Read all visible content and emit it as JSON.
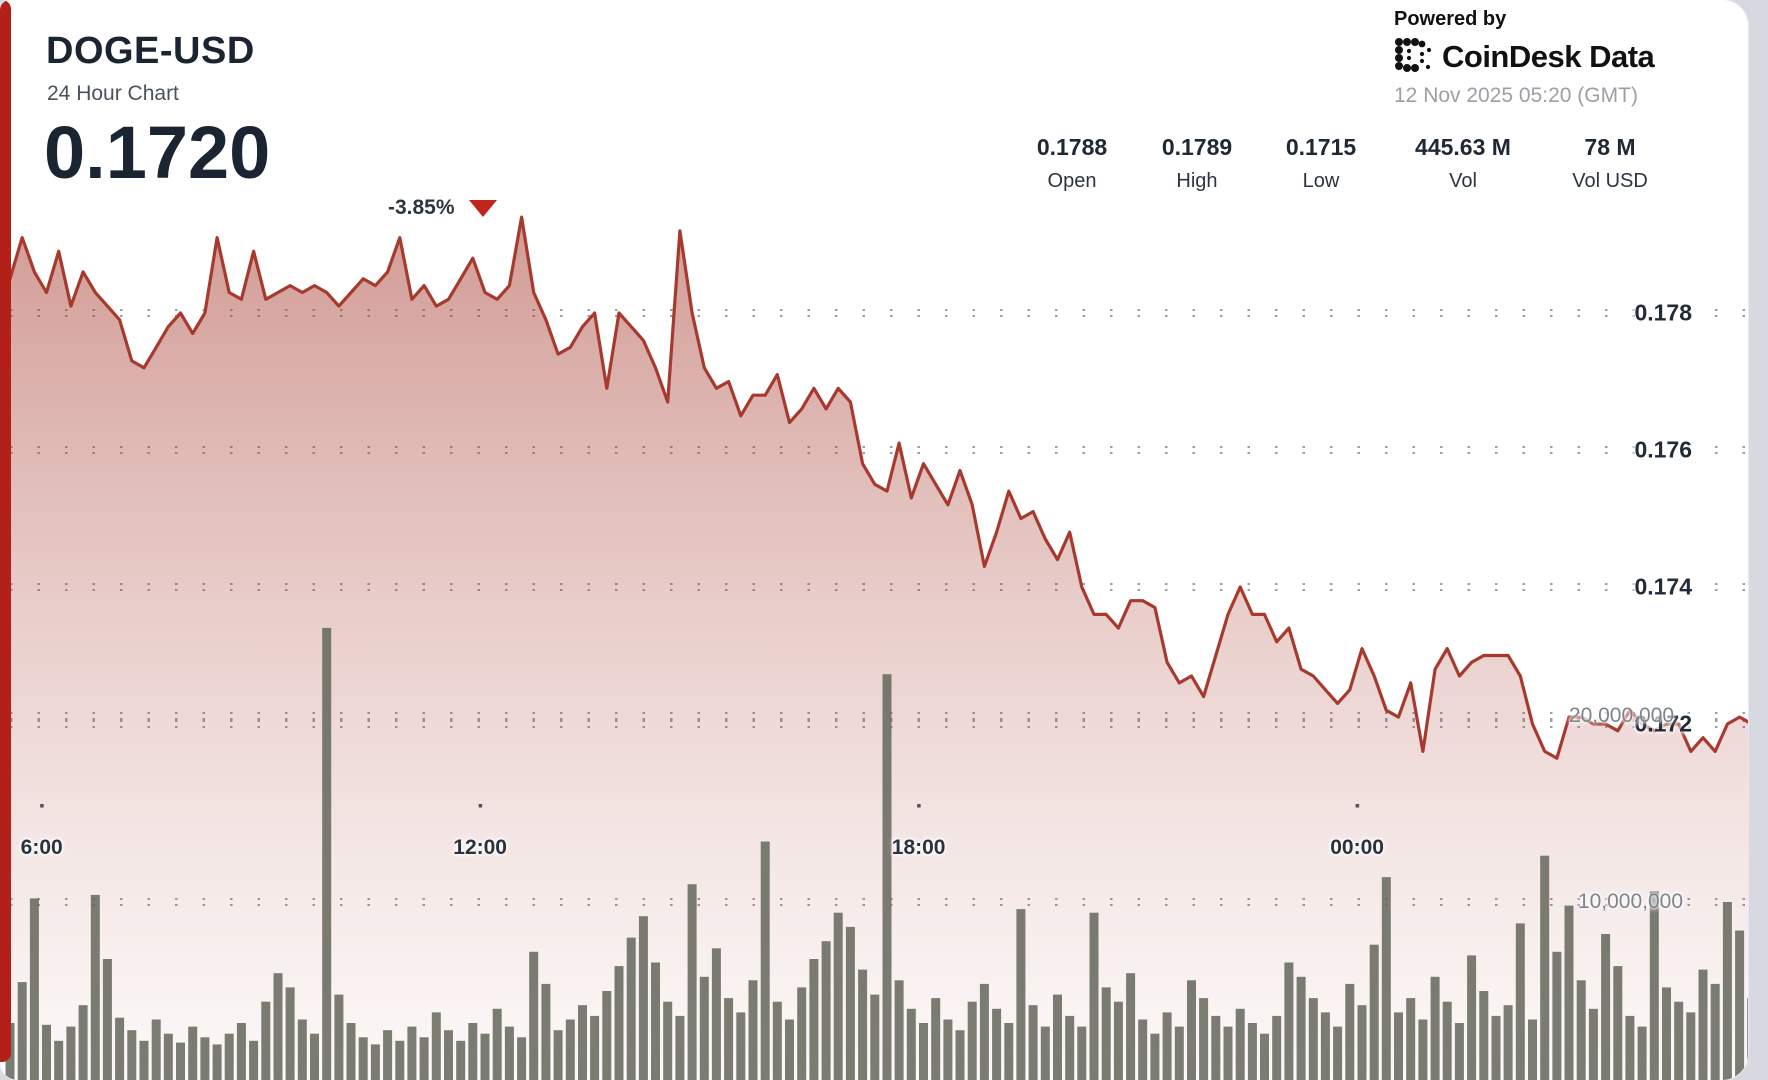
{
  "card": {
    "title": "DOGE-USD",
    "subtitle": "24 Hour Chart",
    "last_price": "0.1720",
    "change_percent": "-3.85%",
    "change_direction": "down"
  },
  "stats": [
    {
      "value": "0.1788",
      "label": "Open"
    },
    {
      "value": "0.1789",
      "label": "High"
    },
    {
      "value": "0.1715",
      "label": "Low"
    },
    {
      "value": "445.63 M",
      "label": "Vol"
    },
    {
      "value": "78 M",
      "label": "Vol USD"
    }
  ],
  "attribution": {
    "powered_by": "Powered by",
    "brand": "CoinDesk Data",
    "timestamp": "12 Nov 2025 05:20 (GMT)"
  },
  "colors": {
    "accent_red": "#b22019",
    "line_red": "#a63a2e",
    "triangle_red": "#c0241b",
    "volume_bar": "#63665a",
    "grid_dot": "#8b8f96",
    "title_navy": "#1b2531",
    "muted_gray": "#9b9fa6"
  },
  "chart_data": {
    "type": "area",
    "title": "DOGE-USD 24 Hour Chart",
    "legend": "none",
    "grid": "dotted-horizontal",
    "x_axis": {
      "tick_labels": [
        "6:00",
        "12:00",
        "18:00",
        "00:00"
      ],
      "tick_indices": [
        2.6,
        38.6,
        74.6,
        110.6
      ],
      "interval_minutes": 10,
      "span_hours": 24
    },
    "price_axis": {
      "side": "right",
      "tick_values": [
        0.178,
        0.176,
        0.174,
        0.172
      ],
      "tick_labels": [
        "0.178",
        "0.176",
        "0.174",
        "0.172"
      ]
    },
    "volume_axis": {
      "side": "right",
      "tick_values_millions": [
        20,
        10
      ],
      "tick_labels": [
        "20,000,000",
        "10,000,000"
      ]
    },
    "summary": {
      "open": 0.1788,
      "high": 0.1789,
      "low": 0.1715,
      "close": 0.172,
      "volume": "445.63 M",
      "volume_usd": "78 M"
    },
    "price_series": [
      0.1785,
      0.1791,
      0.1786,
      0.1783,
      0.1789,
      0.1781,
      0.1786,
      0.1783,
      0.1781,
      0.1779,
      0.1773,
      0.1772,
      0.1775,
      0.1778,
      0.178,
      0.1777,
      0.178,
      0.1791,
      0.1783,
      0.1782,
      0.1789,
      0.1782,
      0.1783,
      0.1784,
      0.1783,
      0.1784,
      0.1783,
      0.1781,
      0.1783,
      0.1785,
      0.1784,
      0.1786,
      0.1791,
      0.1782,
      0.1784,
      0.1781,
      0.1782,
      0.1785,
      0.1788,
      0.1783,
      0.1782,
      0.1784,
      0.1794,
      0.1783,
      0.1779,
      0.1774,
      0.1775,
      0.1778,
      0.178,
      0.1769,
      0.178,
      0.1778,
      0.1776,
      0.1772,
      0.1767,
      0.1792,
      0.178,
      0.1772,
      0.1769,
      0.177,
      0.1765,
      0.1768,
      0.1768,
      0.1771,
      0.1764,
      0.1766,
      0.1769,
      0.1766,
      0.1769,
      0.1767,
      0.1758,
      0.1755,
      0.1754,
      0.1761,
      0.1753,
      0.1758,
      0.1755,
      0.1752,
      0.1757,
      0.1752,
      0.1743,
      0.1748,
      0.1754,
      0.175,
      0.1751,
      0.1747,
      0.1744,
      0.1748,
      0.174,
      0.1736,
      0.1736,
      0.1734,
      0.1738,
      0.1738,
      0.1737,
      0.1729,
      0.1726,
      0.1727,
      0.1724,
      0.173,
      0.1736,
      0.174,
      0.1736,
      0.1736,
      0.1732,
      0.1734,
      0.1728,
      0.1727,
      0.1725,
      0.1723,
      0.1725,
      0.1731,
      0.1727,
      0.1722,
      0.1721,
      0.1726,
      0.1716,
      0.1728,
      0.1731,
      0.1727,
      0.1729,
      0.173,
      0.173,
      0.173,
      0.1727,
      0.172,
      0.1716,
      0.1715,
      0.1721,
      0.1721,
      0.172,
      0.172,
      0.1719,
      0.1722,
      0.172,
      0.1719,
      0.172,
      0.172,
      0.1716,
      0.1718,
      0.1716,
      0.172,
      0.1721,
      0.172
    ],
    "volume_series_millions": [
      3.2,
      5.5,
      10.2,
      3.1,
      2.2,
      3.0,
      4.2,
      10.4,
      6.8,
      3.5,
      2.8,
      2.2,
      3.4,
      2.6,
      2.1,
      3.0,
      2.4,
      2.0,
      2.6,
      3.2,
      2.2,
      4.4,
      6.0,
      5.2,
      3.4,
      2.6,
      25.4,
      4.8,
      3.2,
      2.4,
      2.0,
      2.8,
      2.2,
      3.0,
      2.4,
      3.8,
      2.8,
      2.2,
      3.2,
      2.6,
      4.0,
      3.0,
      2.4,
      7.2,
      5.4,
      2.8,
      3.4,
      4.2,
      3.6,
      5.0,
      6.4,
      8.0,
      9.2,
      6.6,
      4.4,
      3.6,
      11.0,
      5.8,
      7.4,
      4.6,
      3.8,
      5.6,
      13.4,
      4.4,
      3.4,
      5.2,
      6.8,
      7.8,
      9.4,
      8.6,
      6.2,
      4.8,
      22.8,
      5.6,
      4.0,
      3.2,
      4.6,
      3.4,
      2.8,
      4.4,
      5.4,
      4.0,
      3.2,
      9.6,
      4.2,
      3.0,
      4.8,
      3.6,
      3.0,
      9.4,
      5.2,
      4.4,
      6.0,
      3.4,
      2.6,
      3.8,
      3.0,
      5.6,
      4.6,
      3.6,
      3.0,
      4.0,
      3.2,
      2.6,
      3.6,
      6.6,
      5.8,
      4.6,
      3.8,
      3.0,
      5.4,
      4.2,
      7.6,
      11.4,
      3.8,
      4.6,
      3.4,
      5.8,
      4.4,
      3.2,
      7.0,
      5.0,
      3.6,
      4.2,
      8.8,
      3.4,
      12.6,
      7.2,
      9.8,
      5.6,
      4.0,
      8.2,
      6.4,
      3.6,
      3.0,
      10.6,
      5.2,
      4.4,
      3.8,
      6.2,
      5.4,
      10.0,
      8.4,
      4.6
    ]
  }
}
